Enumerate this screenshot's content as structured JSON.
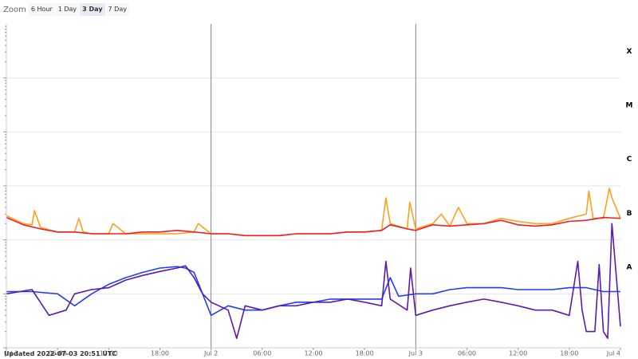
{
  "zoom": {
    "label": "Zoom",
    "buttons": [
      {
        "label": "6 Hour",
        "active": false
      },
      {
        "label": "1 Day",
        "active": false
      },
      {
        "label": "3 Day",
        "active": true
      },
      {
        "label": "7 Day",
        "active": false
      }
    ]
  },
  "updated_text": "Updated 2022-07-03 20:51 UTC",
  "chart_data": {
    "type": "line",
    "title": "",
    "xlabel": "",
    "ylabel": "",
    "x_range": [
      "2022-07-01 00:00",
      "2022-07-04 00:00"
    ],
    "x_tick_labels": [
      "Jul 1",
      "06:00",
      "12:00",
      "18:00",
      "Jul 2",
      "06:00",
      "12:00",
      "18:00",
      "Jul 3",
      "06:00",
      "12:00",
      "18:00",
      "Jul 4"
    ],
    "y_scale": "log",
    "y_range": [
      1e-09,
      0.001
    ],
    "flare_classes": [
      {
        "label": "X",
        "level": 0.0001
      },
      {
        "label": "M",
        "level": 1e-05
      },
      {
        "label": "C",
        "level": 1e-06
      },
      {
        "label": "B",
        "level": 1e-07
      },
      {
        "label": "A",
        "level": 1e-08
      }
    ],
    "day_boundaries": [
      "Jul 2",
      "Jul 3"
    ],
    "grid": true,
    "series": [
      {
        "color": "#ff9f1c",
        "x_hours": [
          0,
          2,
          3,
          3.3,
          4,
          6,
          8,
          8.5,
          9,
          10,
          12,
          12.5,
          14,
          16,
          18,
          20,
          22,
          22.5,
          24,
          26,
          28,
          30,
          32,
          34,
          36,
          38,
          40,
          42,
          44,
          44.5,
          45,
          47,
          47.3,
          48,
          50,
          51,
          52,
          53,
          54,
          56,
          58,
          60,
          62,
          64,
          66,
          68,
          68.3,
          68.8,
          70,
          70.7,
          71,
          72
        ],
        "y_flux": [
          2.8e-07,
          2e-07,
          1.9e-07,
          3.5e-07,
          1.7e-07,
          1.4e-07,
          1.4e-07,
          2.5e-07,
          1.4e-07,
          1.3e-07,
          1.3e-07,
          2e-07,
          1.3e-07,
          1.3e-07,
          1.3e-07,
          1.3e-07,
          1.4e-07,
          2e-07,
          1.3e-07,
          1.3e-07,
          1.2e-07,
          1.2e-07,
          1.2e-07,
          1.3e-07,
          1.3e-07,
          1.3e-07,
          1.4e-07,
          1.4e-07,
          1.5e-07,
          6e-07,
          2e-07,
          1.6e-07,
          5e-07,
          1.6e-07,
          2e-07,
          3e-07,
          1.8e-07,
          4e-07,
          2e-07,
          2e-07,
          2.5e-07,
          2.2e-07,
          2e-07,
          2e-07,
          2.5e-07,
          3e-07,
          8e-07,
          2.5e-07,
          2.5e-07,
          9e-07,
          6e-07,
          2.5e-07
        ]
      },
      {
        "color": "#e8202a",
        "x_hours": [
          0,
          2,
          4,
          6,
          8,
          10,
          12,
          14,
          16,
          18,
          20,
          22,
          24,
          26,
          28,
          30,
          32,
          34,
          36,
          38,
          40,
          42,
          44,
          45,
          47,
          48,
          50,
          52,
          54,
          56,
          58,
          60,
          62,
          64,
          66,
          68,
          70,
          72
        ],
        "y_flux": [
          2.6e-07,
          1.9e-07,
          1.6e-07,
          1.4e-07,
          1.4e-07,
          1.3e-07,
          1.3e-07,
          1.3e-07,
          1.4e-07,
          1.4e-07,
          1.5e-07,
          1.4e-07,
          1.3e-07,
          1.3e-07,
          1.2e-07,
          1.2e-07,
          1.2e-07,
          1.3e-07,
          1.3e-07,
          1.3e-07,
          1.4e-07,
          1.4e-07,
          1.5e-07,
          1.9e-07,
          1.6e-07,
          1.5e-07,
          1.9e-07,
          1.8e-07,
          1.9e-07,
          2e-07,
          2.3e-07,
          1.9e-07,
          1.8e-07,
          1.9e-07,
          2.2e-07,
          2.3e-07,
          2.6e-07,
          2.5e-07
        ]
      },
      {
        "color": "#1f3ff2",
        "x_hours": [
          0,
          3,
          6,
          8,
          10,
          12,
          14,
          16,
          18,
          20,
          21,
          22,
          23,
          24,
          26,
          28,
          30,
          32,
          34,
          36,
          38,
          40,
          42,
          44,
          45,
          46,
          48,
          50,
          52,
          54,
          56,
          58,
          60,
          62,
          64,
          66,
          68,
          70,
          72
        ],
        "y_flux": [
          1.1e-08,
          1.1e-08,
          1e-08,
          6e-09,
          1e-08,
          1.5e-08,
          2e-08,
          2.5e-08,
          3e-08,
          3.2e-08,
          3e-08,
          2.5e-08,
          1e-08,
          4e-09,
          6e-09,
          5e-09,
          5e-09,
          6e-09,
          7e-09,
          7e-09,
          8e-09,
          8e-09,
          8e-09,
          8e-09,
          2e-08,
          9e-09,
          1e-08,
          1e-08,
          1.2e-08,
          1.3e-08,
          1.3e-08,
          1.3e-08,
          1.2e-08,
          1.2e-08,
          1.2e-08,
          1.3e-08,
          1.3e-08,
          1.1e-08,
          1.1e-08
        ]
      },
      {
        "color": "#5a1ab0",
        "x_hours": [
          0,
          3,
          5,
          7,
          8,
          10,
          12,
          14,
          16,
          18,
          20,
          21,
          22,
          23,
          24,
          26,
          27,
          28,
          30,
          32,
          34,
          36,
          38,
          40,
          42,
          44,
          44.5,
          45,
          47,
          47.4,
          48,
          50,
          52,
          54,
          56,
          58,
          60,
          62,
          64,
          66,
          67,
          67.5,
          68,
          69,
          69.5,
          70,
          70.5,
          71,
          72
        ],
        "y_flux": [
          1e-08,
          1.2e-08,
          4e-09,
          5e-09,
          1e-08,
          1.2e-08,
          1.3e-08,
          1.8e-08,
          2.2e-08,
          2.6e-08,
          3e-08,
          3.3e-08,
          2e-08,
          1e-08,
          7e-09,
          5e-09,
          1.5e-09,
          6e-09,
          5e-09,
          6e-09,
          6e-09,
          7e-09,
          7e-09,
          8e-09,
          7e-09,
          6e-09,
          4e-08,
          8e-09,
          5e-09,
          3e-08,
          4e-09,
          5e-09,
          6e-09,
          7e-09,
          8e-09,
          7e-09,
          6e-09,
          5e-09,
          5e-09,
          4e-09,
          4e-08,
          5e-09,
          2e-09,
          2e-09,
          3.5e-08,
          2e-09,
          1.5e-09,
          2e-07,
          2.5e-09
        ]
      }
    ]
  }
}
